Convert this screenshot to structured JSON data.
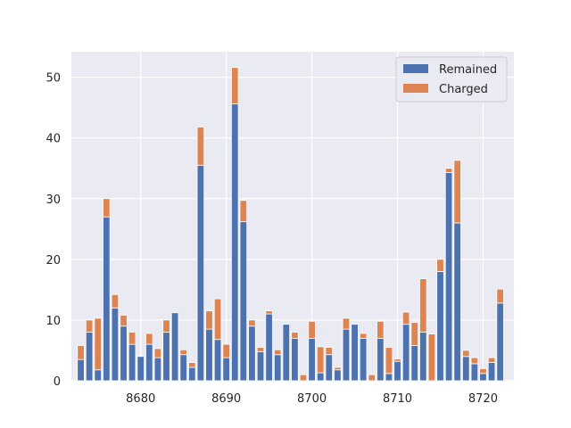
{
  "chart_data": {
    "type": "bar",
    "stacked": true,
    "x": [
      8673,
      8674,
      8675,
      8676,
      8677,
      8678,
      8679,
      8680,
      8681,
      8682,
      8683,
      8684,
      8685,
      8686,
      8687,
      8688,
      8689,
      8690,
      8691,
      8692,
      8693,
      8694,
      8695,
      8696,
      8697,
      8698,
      8699,
      8700,
      8701,
      8702,
      8703,
      8704,
      8705,
      8706,
      8707,
      8708,
      8709,
      8710,
      8711,
      8712,
      8713,
      8714,
      8715,
      8716,
      8717,
      8718,
      8719,
      8720,
      8721,
      8722
    ],
    "series": [
      {
        "name": "Remained",
        "color": "#4c72b0",
        "values": [
          3.5,
          8,
          1.8,
          27,
          12,
          9,
          6,
          4,
          6,
          3.8,
          8,
          11.2,
          4.3,
          2.2,
          35.5,
          8.5,
          6.8,
          3.8,
          45.6,
          26.2,
          9,
          4.8,
          11,
          4.3,
          9.3,
          7,
          0,
          7,
          1.3,
          4.3,
          1.8,
          8.5,
          9.3,
          7,
          0,
          7,
          1.2,
          3.2,
          9.3,
          5.8,
          8,
          0,
          18,
          34.3,
          26,
          4,
          2.8,
          1.2,
          3,
          12.8
        ]
      },
      {
        "name": "Charged",
        "color": "#dd8452",
        "values": [
          2.3,
          2,
          8.5,
          3,
          2.2,
          1.8,
          2,
          0,
          1.8,
          1.5,
          2,
          0,
          0.8,
          0.8,
          6.3,
          3,
          6.7,
          2.2,
          6,
          3.5,
          1,
          0.7,
          0.5,
          0.8,
          0,
          1,
          1,
          2.8,
          4.3,
          1.2,
          0.4,
          1.8,
          0,
          0.8,
          1,
          2.8,
          4.3,
          0.4,
          2,
          3.8,
          8.8,
          7.7,
          2,
          0.7,
          10.3,
          1,
          1,
          0.8,
          0.8,
          2.3
        ]
      }
    ],
    "xticks": [
      8680,
      8690,
      8700,
      8710,
      8720
    ],
    "yticks": [
      0,
      10,
      20,
      30,
      40,
      50
    ],
    "xlim": [
      8671.9,
      8723.6
    ],
    "ylim": [
      0,
      54.2
    ],
    "grid": true,
    "legend": {
      "placement": "top-right",
      "entries": [
        "Remained",
        "Charged"
      ]
    },
    "background": "#eaeaf2",
    "grid_color": "#ffffff"
  }
}
